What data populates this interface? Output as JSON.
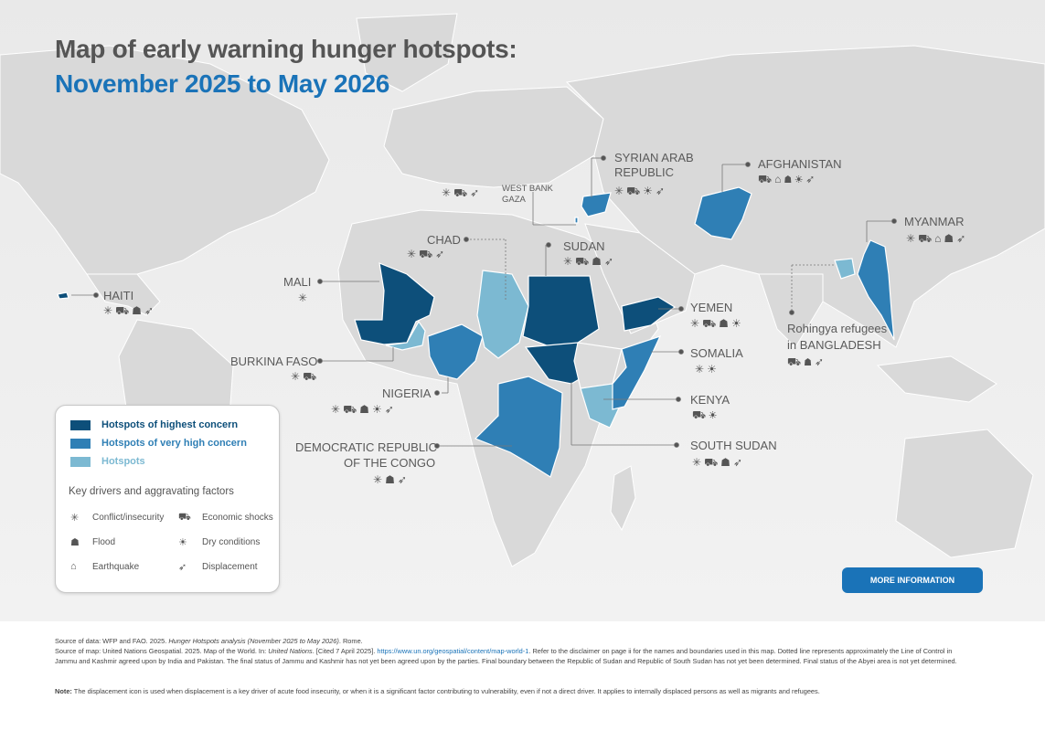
{
  "title": {
    "line1": "Map of early warning hunger hotspots:",
    "line2": "November 2025 to May 2026"
  },
  "colors": {
    "highest": "#0d4f7a",
    "very_high": "#2f7fb5",
    "hotspot": "#7cb9d2",
    "land": "#dcdcdc",
    "accent": "#1a73b8"
  },
  "countries": {
    "haiti": "HAITI",
    "mali": "MALI",
    "burkina_faso": "BURKINA FASO",
    "chad": "CHAD",
    "nigeria": "NIGERIA",
    "drc_line1": "DEMOCRATIC REPUBLIC",
    "drc_line2": "OF THE CONGO",
    "west_bank": "WEST BANK",
    "gaza": "GAZA",
    "syria_line1": "SYRIAN ARAB",
    "syria_line2": "REPUBLIC",
    "sudan": "SUDAN",
    "afghanistan": "AFGHANISTAN",
    "myanmar": "MYANMAR",
    "yemen": "YEMEN",
    "somalia": "SOMALIA",
    "kenya": "KENYA",
    "south_sudan": "SOUTH SUDAN",
    "bangladesh_line1": "Rohingya refugees",
    "bangladesh_line2": "in BANGLADESH"
  },
  "icons": {
    "conflict": "✳",
    "economic": "⛟",
    "flood": "☗",
    "dry": "☀",
    "earthquake": "⌂",
    "displacement": "➶"
  },
  "legend": {
    "highest": "Hotspots of highest concern",
    "very_high": "Hotspots of very high concern",
    "hotspots": "Hotspots",
    "key_drivers": "Key drivers and aggravating factors",
    "conflict": "Conflict/insecurity",
    "economic": "Economic shocks",
    "flood": "Flood",
    "dry": "Dry conditions",
    "earthquake": "Earthquake",
    "displacement": "Displacement"
  },
  "more_button": "MORE INFORMATION",
  "footer": {
    "data_source_1": "Source of data: WFP and FAO. 2025. ",
    "data_source_title": "Hunger Hotspots analysis (November 2025 to May 2026)",
    "data_source_2": ". Rome.",
    "map_source_1": "Source of map: United Nations Geospatial. 2025. Map of the World. In: ",
    "map_source_title": "United Nations",
    "map_source_2": ". [Cited 7 April 2025]. ",
    "map_link": "https://www.un.org/geospatial/content/map-world-1",
    "map_source_3": ". Refer to the disclaimer on page ii for the names and boundaries used in this map. Dotted line represents approximately the Line of Control in Jammu and Kashmir agreed upon by India and Pakistan. The final status of Jammu and Kashmir has not yet been agreed upon by the parties. Final boundary between the Republic of Sudan and Republic of South Sudan has not yet been determined. Final status of the Abyei area is not yet determined.",
    "note_label": "Note:",
    "note_text": " The displacement icon is used when displacement is a key driver of acute food insecurity, or when it is a significant factor contributing to vulnerability, even if not a direct driver. It applies to internally displaced persons as well as migrants and refugees."
  }
}
